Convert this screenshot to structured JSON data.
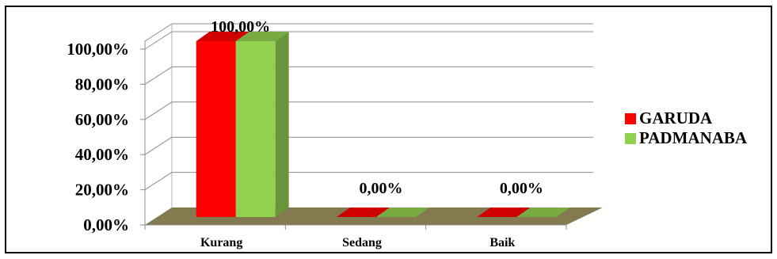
{
  "chart_data": {
    "type": "bar",
    "title": "",
    "xlabel": "",
    "ylabel": "",
    "categories": [
      "Kurang",
      "Sedang",
      "Baik"
    ],
    "series": [
      {
        "name": "GARUDA",
        "values": [
          100.0,
          0.0,
          0.0
        ],
        "color": "#ff0000"
      },
      {
        "name": "PADMANABA",
        "values": [
          100.0,
          0.0,
          0.0
        ],
        "color": "#92d050"
      }
    ],
    "data_labels": [
      "100,00%",
      "0,00%",
      "0,00%"
    ],
    "ylim": [
      0,
      100
    ],
    "y_ticks": [
      "0,00%",
      "20,00%",
      "40,00%",
      "60,00%",
      "80,00%",
      "100,00%"
    ],
    "y_tick_values": [
      0,
      20,
      40,
      60,
      80,
      100
    ],
    "grid": true,
    "three_d": true,
    "legend_position": "right",
    "floor_color": "#847a50"
  }
}
